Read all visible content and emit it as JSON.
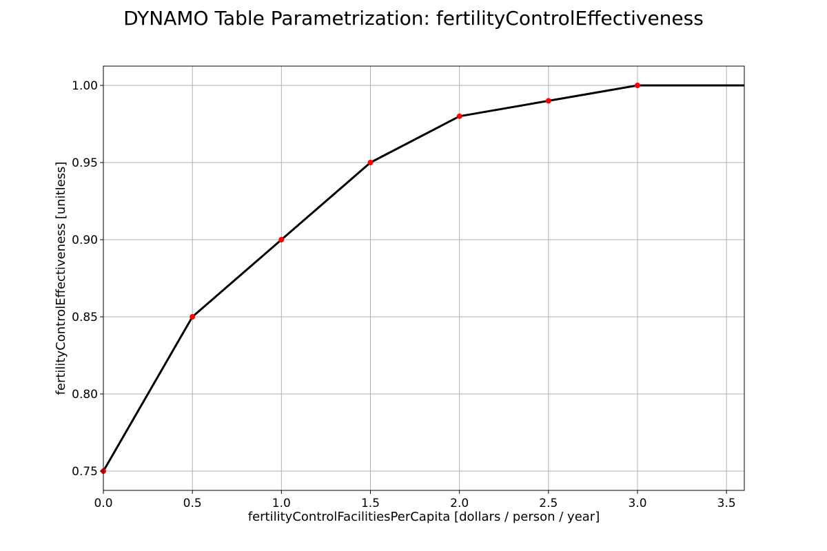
{
  "chart_data": {
    "type": "line",
    "title": "DYNAMO Table Parametrization: fertilityControlEffectiveness",
    "xlabel": "fertilityControlFacilitiesPerCapita [dollars / person / year]",
    "ylabel": "fertilityControlEffectiveness [unitless]",
    "xlim": [
      0.0,
      3.6
    ],
    "ylim": [
      0.7375,
      1.0125
    ],
    "x_ticks": [
      "0.0",
      "0.5",
      "1.0",
      "1.5",
      "2.0",
      "2.5",
      "3.0",
      "3.5"
    ],
    "y_ticks": [
      "0.75",
      "0.80",
      "0.85",
      "0.90",
      "0.95",
      "1.00"
    ],
    "grid": true,
    "series": [
      {
        "line_x": [
          0.0,
          0.5,
          1.0,
          1.5,
          2.0,
          2.5,
          3.0,
          3.6
        ],
        "line_y": [
          0.75,
          0.85,
          0.9,
          0.95,
          0.98,
          0.99,
          1.0,
          1.0
        ],
        "points_x": [
          0.0,
          0.5,
          1.0,
          1.5,
          2.0,
          2.5,
          3.0
        ],
        "points_y": [
          0.75,
          0.85,
          0.9,
          0.95,
          0.98,
          0.99,
          1.0
        ],
        "line_color": "#000000",
        "point_color": "#ff0000"
      }
    ]
  }
}
